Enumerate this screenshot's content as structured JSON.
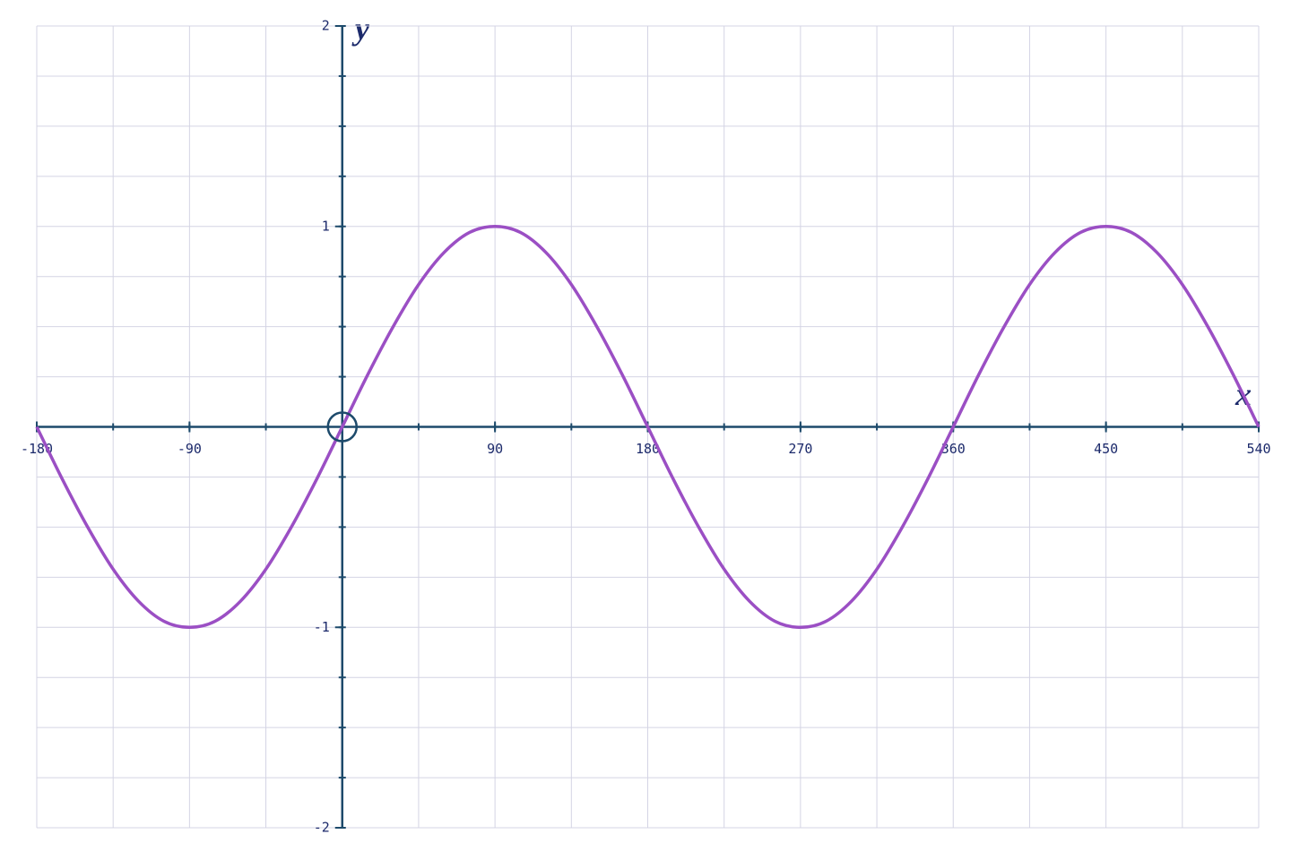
{
  "chart_data": {
    "type": "line",
    "x_label": "x",
    "y_label": "y",
    "xlim": [
      -180,
      540
    ],
    "ylim": [
      -2,
      2
    ],
    "xticks": [
      -180,
      -90,
      90,
      180,
      270,
      360,
      450,
      540
    ],
    "yticks": [
      -2,
      -1,
      1,
      2
    ],
    "xgrid": [
      -180,
      -135,
      -90,
      -45,
      0,
      45,
      90,
      135,
      180,
      225,
      270,
      315,
      360,
      405,
      450,
      495,
      540
    ],
    "ygrid": [
      -2,
      -1.75,
      -1.5,
      -1.25,
      -1,
      -0.75,
      -0.5,
      -0.25,
      0,
      0.25,
      0.5,
      0.75,
      1,
      1.25,
      1.5,
      1.75,
      2
    ],
    "grid": true,
    "x": [
      -180,
      -165,
      -150,
      -135,
      -120,
      -105,
      -90,
      -75,
      -60,
      -45,
      -30,
      -15,
      0,
      15,
      30,
      45,
      60,
      75,
      90,
      105,
      120,
      135,
      150,
      165,
      180,
      195,
      210,
      225,
      240,
      255,
      270,
      285,
      300,
      315,
      330,
      345,
      360,
      375,
      390,
      405,
      420,
      435,
      450,
      465,
      480,
      495,
      510,
      525,
      540
    ],
    "series": [
      {
        "color": "#9b4fc4",
        "values": [
          0,
          -0.26,
          -0.5,
          -0.71,
          -0.87,
          -0.97,
          -1,
          -0.97,
          -0.87,
          -0.71,
          -0.5,
          -0.26,
          0,
          0.26,
          0.5,
          0.71,
          0.87,
          0.97,
          1,
          0.97,
          0.87,
          0.71,
          0.5,
          0.26,
          0,
          -0.26,
          -0.5,
          -0.71,
          -0.87,
          -0.97,
          -1,
          -0.97,
          -0.87,
          -0.71,
          -0.5,
          -0.26,
          0,
          0.26,
          0.5,
          0.71,
          0.87,
          0.97,
          1,
          0.97,
          0.87,
          0.71,
          0.5,
          0.26,
          0
        ]
      }
    ]
  }
}
